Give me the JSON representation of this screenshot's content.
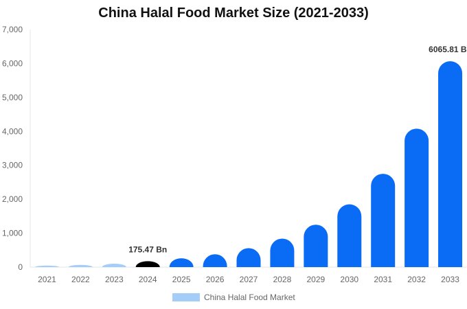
{
  "chart_data": {
    "type": "bar",
    "title": "China Halal Food Market Size (2021-2033)",
    "xlabel": "",
    "ylabel": "",
    "categories": [
      "2021",
      "2022",
      "2023",
      "2024",
      "2025",
      "2026",
      "2027",
      "2028",
      "2029",
      "2030",
      "2031",
      "2032",
      "2033"
    ],
    "series": [
      {
        "name": "China Halal Food Market",
        "values": [
          45,
          65,
          100,
          175.47,
          260,
          380,
          560,
          840,
          1250,
          1850,
          2750,
          4080,
          6065.81
        ]
      }
    ],
    "ylim": [
      0,
      7000
    ],
    "yticks": [
      0,
      1000,
      2000,
      3000,
      4000,
      5000,
      6000,
      7000
    ],
    "ytick_labels": [
      "0",
      "1,000",
      "2,000",
      "3,000",
      "4,000",
      "5,000",
      "6,000",
      "7,000"
    ],
    "data_labels": [
      {
        "category": "2024",
        "text": "175.47 Bn"
      },
      {
        "category": "2033",
        "text": "6065.81 Bn"
      }
    ],
    "bar_colors": {
      "historical": "#a4cdf7",
      "base_year": "#000000",
      "forecast": "#0a6cf5"
    },
    "historical_categories": [
      "2021",
      "2022",
      "2023"
    ],
    "base_year_category": "2024",
    "legend": {
      "position": "bottom",
      "label": "China Halal Food Market",
      "color": "#a4cdf7"
    },
    "grid": false
  }
}
